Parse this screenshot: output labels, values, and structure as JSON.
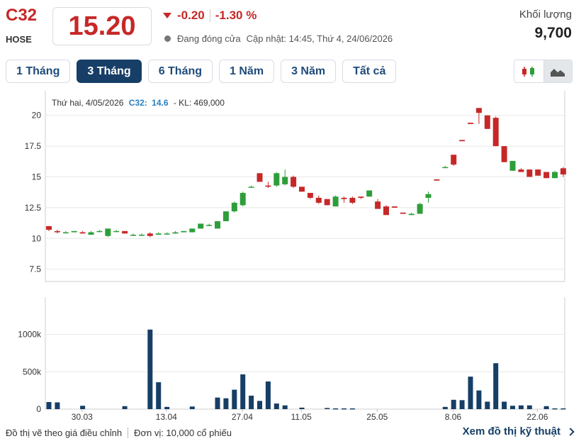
{
  "header": {
    "ticker": "C32",
    "exchange": "HOSE",
    "price": "15.20",
    "change": "-0.20",
    "change_pct": "-1.30 %",
    "status": "Đang đóng cửa",
    "updated": "Cập nhật: 14:45, Thứ 4, 24/06/2026",
    "volume_label": "Khối lượng",
    "volume_value": "9,700",
    "colors": {
      "down": "#c62828",
      "up": "#2e9e3a",
      "accent": "#163e66"
    }
  },
  "tabs": [
    {
      "label": "1 Tháng",
      "active": false
    },
    {
      "label": "3 Tháng",
      "active": true
    },
    {
      "label": "6 Tháng",
      "active": false
    },
    {
      "label": "1 Năm",
      "active": false
    },
    {
      "label": "3 Năm",
      "active": false
    },
    {
      "label": "Tất cả",
      "active": false
    }
  ],
  "chart_type_buttons": [
    {
      "icon": "candlestick-icon",
      "selected": false
    },
    {
      "icon": "area-chart-icon",
      "selected": true
    }
  ],
  "tooltip": {
    "date": "Thứ hai, 4/05/2026",
    "ticker": "C32:",
    "price": "14.6",
    "volume": "- KL: 469,000"
  },
  "chart_data": {
    "type": "candlestick",
    "price_axis": {
      "ticks": [
        "20",
        "17.5",
        "15",
        "12.5",
        "10",
        "7.5"
      ],
      "values": [
        20,
        17.5,
        15,
        12.5,
        10,
        7.5
      ],
      "range": [
        6.5,
        22
      ]
    },
    "volume_axis": {
      "ticks": [
        "1000k",
        "500k",
        "0"
      ],
      "values": [
        1000,
        500,
        0
      ],
      "range": [
        0,
        1500
      ]
    },
    "x_ticks": [
      "30.03",
      "13.04",
      "27.04",
      "11.05",
      "25.05",
      "8.06",
      "22.06"
    ],
    "x_tick_index": [
      2,
      12,
      21,
      28,
      37,
      46,
      56
    ],
    "candles": [
      {
        "o": 11.0,
        "h": 11.0,
        "l": 10.6,
        "c": 10.7
      },
      {
        "o": 10.6,
        "h": 10.7,
        "l": 10.4,
        "c": 10.5
      },
      {
        "o": 10.5,
        "h": 10.6,
        "l": 10.4,
        "c": 10.5
      },
      {
        "o": 10.5,
        "h": 10.6,
        "l": 10.5,
        "c": 10.6
      },
      {
        "o": 10.5,
        "h": 10.6,
        "l": 10.4,
        "c": 10.4
      },
      {
        "o": 10.3,
        "h": 10.6,
        "l": 10.3,
        "c": 10.5
      },
      {
        "o": 10.6,
        "h": 10.7,
        "l": 10.6,
        "c": 10.6
      },
      {
        "o": 10.2,
        "h": 10.8,
        "l": 10.1,
        "c": 10.8
      },
      {
        "o": 10.6,
        "h": 10.7,
        "l": 10.6,
        "c": 10.6
      },
      {
        "o": 10.6,
        "h": 10.6,
        "l": 10.4,
        "c": 10.4
      },
      {
        "o": 10.3,
        "h": 10.4,
        "l": 10.2,
        "c": 10.3
      },
      {
        "o": 10.3,
        "h": 10.4,
        "l": 10.2,
        "c": 10.3
      },
      {
        "o": 10.4,
        "h": 10.5,
        "l": 10.1,
        "c": 10.2
      },
      {
        "o": 10.3,
        "h": 10.5,
        "l": 10.3,
        "c": 10.4
      },
      {
        "o": 10.4,
        "h": 10.5,
        "l": 10.3,
        "c": 10.4
      },
      {
        "o": 10.4,
        "h": 10.6,
        "l": 10.4,
        "c": 10.5
      },
      {
        "o": 10.5,
        "h": 10.6,
        "l": 10.5,
        "c": 10.6
      },
      {
        "o": 10.5,
        "h": 10.8,
        "l": 10.5,
        "c": 10.8
      },
      {
        "o": 10.8,
        "h": 11.2,
        "l": 10.8,
        "c": 11.2
      },
      {
        "o": 11.1,
        "h": 11.2,
        "l": 11.0,
        "c": 11.1
      },
      {
        "o": 10.8,
        "h": 11.4,
        "l": 10.8,
        "c": 11.4
      },
      {
        "o": 11.4,
        "h": 12.2,
        "l": 11.4,
        "c": 12.2
      },
      {
        "o": 12.2,
        "h": 13.0,
        "l": 12.1,
        "c": 12.9
      },
      {
        "o": 12.7,
        "h": 13.8,
        "l": 12.6,
        "c": 13.7
      },
      {
        "o": 14.2,
        "h": 14.3,
        "l": 14.2,
        "c": 14.2
      },
      {
        "o": 15.3,
        "h": 15.3,
        "l": 14.6,
        "c": 14.6
      },
      {
        "o": 14.3,
        "h": 14.6,
        "l": 14.1,
        "c": 14.2
      },
      {
        "o": 14.3,
        "h": 15.4,
        "l": 14.2,
        "c": 15.3
      },
      {
        "o": 14.4,
        "h": 15.6,
        "l": 14.3,
        "c": 15.0
      },
      {
        "o": 15.0,
        "h": 15.1,
        "l": 14.1,
        "c": 14.2
      },
      {
        "o": 14.2,
        "h": 14.2,
        "l": 13.8,
        "c": 13.8
      },
      {
        "o": 13.7,
        "h": 13.7,
        "l": 13.2,
        "c": 13.3
      },
      {
        "o": 13.3,
        "h": 13.5,
        "l": 12.8,
        "c": 12.9
      },
      {
        "o": 13.2,
        "h": 13.2,
        "l": 12.7,
        "c": 12.7
      },
      {
        "o": 12.6,
        "h": 13.5,
        "l": 12.6,
        "c": 13.4
      },
      {
        "o": 13.3,
        "h": 13.4,
        "l": 12.9,
        "c": 13.2
      },
      {
        "o": 13.3,
        "h": 13.4,
        "l": 12.8,
        "c": 12.9
      },
      {
        "o": 13.4,
        "h": 13.4,
        "l": 13.2,
        "c": 13.3
      },
      {
        "o": 13.4,
        "h": 13.9,
        "l": 13.4,
        "c": 13.9
      },
      {
        "o": 13.0,
        "h": 13.2,
        "l": 12.4,
        "c": 12.4
      },
      {
        "o": 12.6,
        "h": 12.7,
        "l": 11.9,
        "c": 11.9
      },
      {
        "o": 12.6,
        "h": 12.6,
        "l": 12.5,
        "c": 12.5
      },
      {
        "o": 12.1,
        "h": 12.1,
        "l": 12.0,
        "c": 12.0
      },
      {
        "o": 11.9,
        "h": 12.1,
        "l": 11.9,
        "c": 12.0
      },
      {
        "o": 12.0,
        "h": 12.9,
        "l": 12.0,
        "c": 12.8
      },
      {
        "o": 13.3,
        "h": 13.8,
        "l": 12.9,
        "c": 13.6
      },
      {
        "o": 14.8,
        "h": 14.8,
        "l": 14.7,
        "c": 14.7
      },
      {
        "o": 15.8,
        "h": 15.9,
        "l": 15.8,
        "c": 15.8
      },
      {
        "o": 16.8,
        "h": 16.8,
        "l": 15.9,
        "c": 16.0
      },
      {
        "o": 18.0,
        "h": 18.0,
        "l": 17.9,
        "c": 17.9
      },
      {
        "o": 19.4,
        "h": 19.4,
        "l": 19.3,
        "c": 19.3
      },
      {
        "o": 20.6,
        "h": 20.6,
        "l": 19.3,
        "c": 20.2
      },
      {
        "o": 20.0,
        "h": 20.0,
        "l": 18.9,
        "c": 18.9
      },
      {
        "o": 19.8,
        "h": 19.9,
        "l": 17.5,
        "c": 17.5
      },
      {
        "o": 17.5,
        "h": 17.5,
        "l": 16.2,
        "c": 16.2
      },
      {
        "o": 15.5,
        "h": 16.3,
        "l": 15.5,
        "c": 16.3
      },
      {
        "o": 15.6,
        "h": 15.7,
        "l": 15.4,
        "c": 15.4
      },
      {
        "o": 15.6,
        "h": 15.6,
        "l": 15.0,
        "c": 15.0
      },
      {
        "o": 15.6,
        "h": 15.6,
        "l": 15.1,
        "c": 15.1
      },
      {
        "o": 15.4,
        "h": 15.4,
        "l": 14.9,
        "c": 14.9
      },
      {
        "o": 14.9,
        "h": 15.5,
        "l": 14.9,
        "c": 15.4
      },
      {
        "o": 15.7,
        "h": 15.8,
        "l": 15.0,
        "c": 15.2
      }
    ],
    "volumes": [
      95,
      90,
      0,
      0,
      45,
      0,
      0,
      0,
      0,
      40,
      0,
      0,
      1065,
      360,
      30,
      0,
      0,
      35,
      0,
      0,
      155,
      145,
      260,
      465,
      180,
      110,
      370,
      75,
      50,
      0,
      20,
      0,
      0,
      15,
      10,
      10,
      10,
      0,
      0,
      0,
      0,
      0,
      0,
      0,
      0,
      0,
      0,
      30,
      125,
      120,
      435,
      250,
      100,
      615,
      100,
      45,
      50,
      50,
      0,
      40,
      10,
      10
    ]
  },
  "footer": {
    "note": "Đồ thị vẽ theo giá điều chỉnh",
    "unit": "Đơn vị: 10,000 cổ phiếu",
    "link": "Xem đồ thị kỹ thuật"
  }
}
